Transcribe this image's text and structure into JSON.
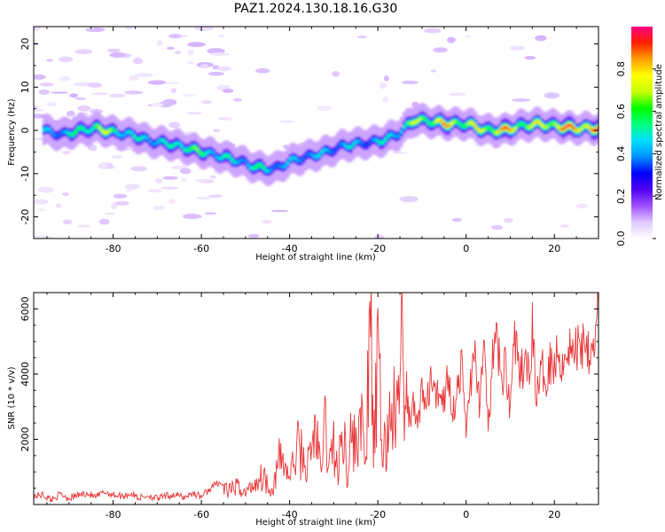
{
  "title": "PAZ1.2024.130.18.16.G30",
  "chart_data": [
    {
      "type": "heatmap",
      "xlabel": "Height of straight line (km)",
      "ylabel": "Frequency (Hz)",
      "xlim": [
        -98,
        30
      ],
      "ylim": [
        -25,
        24
      ],
      "xticks": [
        -80,
        -60,
        -40,
        -20,
        0,
        20
      ],
      "yticks": [
        -20,
        -10,
        0,
        10,
        20
      ],
      "colorbar": {
        "label": "Normalized spectral amplitude",
        "range": [
          0,
          1
        ],
        "ticks": [
          "0.0",
          "0.2",
          "0.4",
          "0.6",
          "0.8"
        ],
        "tick_values": [
          0.0,
          0.2,
          0.4,
          0.6,
          0.8
        ],
        "colormap": "gist_ncar-like",
        "colors": [
          "#ffffff",
          "#e0c8ff",
          "#a050ff",
          "#5000f0",
          "#0000ff",
          "#0090ff",
          "#00e0ff",
          "#00ff80",
          "#00ff00",
          "#c8ff00",
          "#ffff00",
          "#ffa000",
          "#ff2000",
          "#ff0080"
        ]
      },
      "ridge": {
        "x": [
          -96,
          -92,
          -88,
          -84,
          -80,
          -76,
          -72,
          -68,
          -64,
          -60,
          -56,
          -52,
          -48,
          -44,
          -40,
          -36,
          -32,
          -28,
          -24,
          -20,
          -16,
          -12,
          -8,
          -4,
          0,
          4,
          8,
          12,
          16,
          20,
          24,
          30
        ],
        "y": [
          0,
          -1,
          0,
          0.5,
          -0.5,
          -1,
          -2.5,
          -3,
          -4,
          -5,
          -6,
          -7,
          -8.5,
          -9,
          -7,
          -6,
          -5,
          -3.5,
          -3,
          -2.5,
          -1,
          2.5,
          2,
          1.5,
          1.5,
          0,
          0,
          1,
          1.5,
          1,
          0.5,
          0.5
        ],
        "amplitude": [
          0.45,
          0.5,
          0.6,
          0.75,
          0.65,
          0.5,
          0.55,
          0.5,
          0.7,
          0.6,
          0.55,
          0.5,
          0.6,
          0.5,
          0.45,
          0.5,
          0.45,
          0.5,
          0.45,
          0.5,
          0.55,
          0.7,
          0.8,
          0.85,
          0.75,
          0.8,
          0.9,
          0.8,
          0.75,
          0.9,
          0.95,
          0.95
        ]
      }
    },
    {
      "type": "line",
      "xlabel": "Height of straight line (km)",
      "ylabel": "SNR (10 * v/v)",
      "xlim": [
        -98,
        30
      ],
      "ylim": [
        0,
        6500
      ],
      "xticks": [
        -80,
        -60,
        -40,
        -20,
        0,
        20
      ],
      "yticks": [
        2000,
        4000,
        6000
      ],
      "series": [
        {
          "color": "#e8383a",
          "x": [
            -98,
            -96,
            -94,
            -92,
            -90,
            -88,
            -86,
            -84,
            -82,
            -80,
            -78,
            -76,
            -74,
            -72,
            -70,
            -68,
            -66,
            -64,
            -62,
            -60,
            -58,
            -56,
            -54,
            -52,
            -50,
            -48,
            -46,
            -44,
            -42,
            -40,
            -38,
            -36,
            -34,
            -33,
            -32,
            -31,
            -30,
            -29,
            -28,
            -27,
            -26,
            -25,
            -24,
            -23,
            -22,
            -21.5,
            -21,
            -20,
            -19,
            -18,
            -17,
            -16,
            -15,
            -14.5,
            -14,
            -13.5,
            -13,
            -12,
            -11,
            -10,
            -9,
            -8,
            -7,
            -6,
            -5,
            -4,
            -3,
            -2,
            -1,
            0,
            1,
            2,
            3,
            4,
            5,
            6,
            7,
            8,
            9,
            10,
            11,
            12,
            13,
            14,
            15,
            16,
            17,
            18,
            19,
            20,
            21,
            22,
            23,
            24,
            25,
            26,
            27,
            28,
            29,
            30
          ],
          "values": [
            250,
            300,
            150,
            320,
            200,
            280,
            350,
            220,
            380,
            300,
            260,
            330,
            200,
            280,
            180,
            260,
            300,
            220,
            350,
            250,
            480,
            700,
            380,
            560,
            350,
            650,
            900,
            420,
            1500,
            820,
            1800,
            1100,
            2400,
            900,
            2500,
            1200,
            1900,
            800,
            2600,
            1100,
            2100,
            1700,
            3000,
            1200,
            4000,
            5200,
            1500,
            4200,
            1900,
            1700,
            3200,
            2500,
            3700,
            6400,
            2000,
            3800,
            2600,
            3000,
            2400,
            3600,
            2900,
            3900,
            3200,
            3600,
            3200,
            4100,
            2800,
            3600,
            4200,
            2300,
            3900,
            4400,
            3200,
            4600,
            2400,
            4300,
            5100,
            3700,
            4400,
            2900,
            5400,
            3700,
            4300,
            4000,
            5300,
            3300,
            4100,
            3900,
            4500,
            4300,
            4700,
            4300,
            5000,
            4600,
            4800,
            4900,
            5200,
            4800,
            5100,
            6200
          ]
        }
      ]
    }
  ]
}
